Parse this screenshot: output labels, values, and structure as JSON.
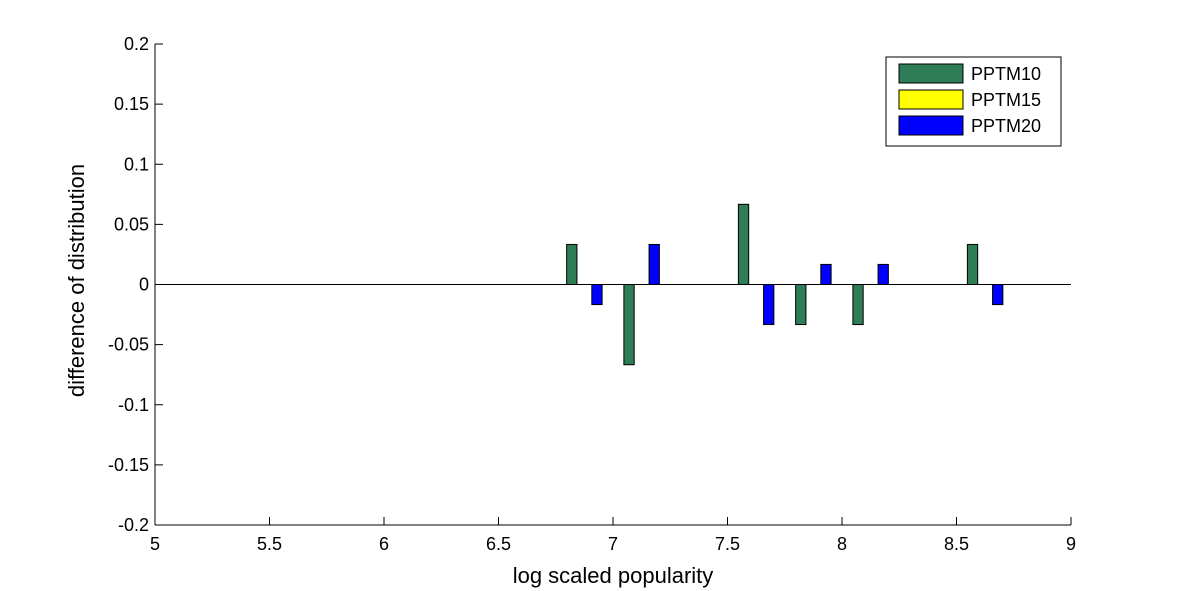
{
  "chart_data": {
    "type": "bar",
    "xlabel": "log scaled popularity",
    "ylabel": "difference of distribution",
    "xlim": [
      5,
      9
    ],
    "ylim": [
      -0.2,
      0.2
    ],
    "xticks": [
      5,
      5.5,
      6,
      6.5,
      7,
      7.5,
      8,
      8.5,
      9
    ],
    "xtick_labels": [
      "5",
      "5.5",
      "6",
      "6.5",
      "7",
      "7.5",
      "8",
      "8.5",
      "9"
    ],
    "yticks": [
      -0.2,
      -0.15,
      -0.1,
      -0.05,
      0,
      0.05,
      0.1,
      0.15,
      0.2
    ],
    "ytick_labels": [
      "-0.2",
      "-0.15",
      "-0.1",
      "-0.05",
      "0",
      "0.05",
      "0.1",
      "0.15",
      "0.2"
    ],
    "grid": false,
    "legend_position": "top-right",
    "bar_width": 0.045,
    "series": [
      {
        "name": "PPTM10",
        "color": "#2e7d57",
        "x": [
          6.82,
          7.07,
          7.57,
          7.82,
          8.07,
          8.57
        ],
        "values": [
          0.0333,
          -0.0667,
          0.0667,
          -0.0333,
          -0.0333,
          0.0333
        ]
      },
      {
        "name": "PPTM15",
        "color": "#ffff00",
        "x": [],
        "values": []
      },
      {
        "name": "PPTM20",
        "color": "#0000ff",
        "x": [
          6.93,
          7.18,
          7.68,
          7.93,
          8.18,
          8.68
        ],
        "values": [
          -0.0167,
          0.0333,
          -0.0333,
          0.0167,
          0.0167,
          -0.0167
        ]
      }
    ]
  }
}
